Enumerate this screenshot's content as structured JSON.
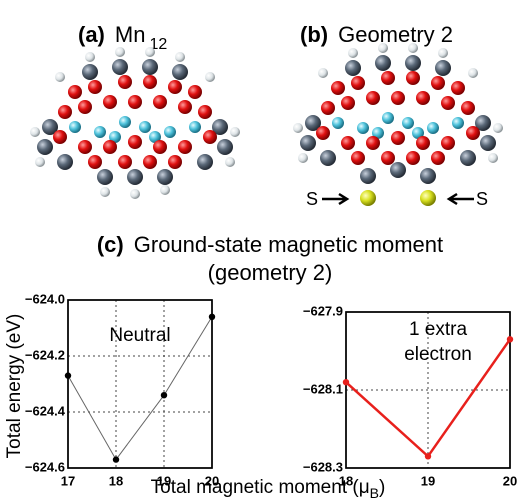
{
  "panels": {
    "a": {
      "label": "(a)",
      "title": "Mn",
      "title_sub": "12"
    },
    "b": {
      "label": "(b)",
      "title": "Geometry 2",
      "markers": [
        "S",
        "S"
      ]
    },
    "c": {
      "label": "(c)",
      "title": "Ground-state magnetic moment",
      "subtitle": "(geometry 2)"
    }
  },
  "y_label": "Total energy (eV)",
  "x_label": {
    "text": "Total magnetic moment (",
    "symbol": "μ",
    "sub": "B",
    "close": ")"
  },
  "chart_data": [
    {
      "type": "line",
      "annotation": [
        "Neutral"
      ],
      "x": [
        17,
        18,
        19,
        20
      ],
      "values": [
        -624.27,
        -624.57,
        -624.34,
        -624.06
      ],
      "color": "#666666",
      "marker_color": "#000000",
      "xlim": [
        17,
        20
      ],
      "xticks": [
        17,
        18,
        19,
        20
      ],
      "ylim": [
        -624.6,
        -624.0
      ],
      "yticks": [
        {
          "value": -624.0,
          "label": "−624.0"
        },
        {
          "value": -624.2,
          "label": "−624.2"
        },
        {
          "value": -624.4,
          "label": "−624.4"
        },
        {
          "value": -624.6,
          "label": "−624.6"
        }
      ],
      "grid": true
    },
    {
      "type": "line",
      "annotation": [
        "1 extra",
        "electron"
      ],
      "x": [
        18,
        19,
        20
      ],
      "values": [
        -628.08,
        -628.27,
        -627.97
      ],
      "color": "#e8201c",
      "marker_color": "#e8201c",
      "xlim": [
        18,
        20
      ],
      "xticks": [
        18,
        19,
        20
      ],
      "ylim": [
        -628.3,
        -627.9
      ],
      "yticks": [
        {
          "value": -627.9,
          "label": "−627.9"
        },
        {
          "value": -628.1,
          "label": "−628.1"
        },
        {
          "value": -628.3,
          "label": "−628.3"
        }
      ],
      "grid": true
    }
  ]
}
